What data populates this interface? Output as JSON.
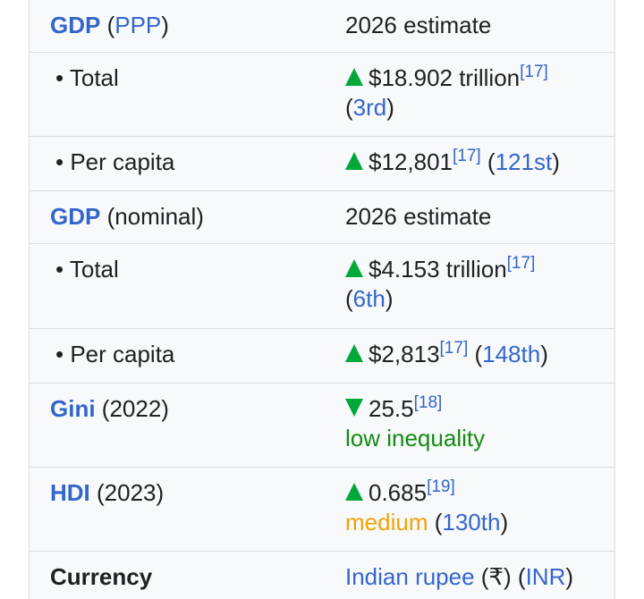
{
  "infobox": {
    "rows": [
      {
        "label": [
          "GDP",
          "(",
          "PPP",
          ")"
        ],
        "value": [
          "2026 estimate"
        ]
      },
      {
        "label": [
          "• Total"
        ],
        "value": [
          "$18.902 trillion",
          "[17]",
          "(",
          "3rd",
          ")"
        ]
      },
      {
        "label": [
          "• Per capita"
        ],
        "value": [
          "$12,801",
          "[17]",
          "(",
          "121st",
          ")"
        ]
      },
      {
        "label": [
          "GDP",
          "(nominal)"
        ],
        "value": [
          "2026 estimate"
        ]
      },
      {
        "label": [
          "• Total"
        ],
        "value": [
          "$4.153 trillion",
          "[17]",
          "(",
          "6th",
          ")"
        ]
      },
      {
        "label": [
          "• Per capita"
        ],
        "value": [
          "$2,813",
          "[17]",
          "(",
          "148th",
          ")"
        ]
      },
      {
        "label": [
          "Gini",
          "(2022)"
        ],
        "value": [
          "25.5",
          "[18]",
          "low inequality"
        ]
      },
      {
        "label": [
          "HDI",
          "(2023)"
        ],
        "value": [
          "0.685",
          "[19]",
          "medium",
          "(",
          "130th",
          ")"
        ]
      },
      {
        "label": [
          "Currency"
        ],
        "value": [
          "Indian rupee",
          "(₹)",
          "(",
          "INR",
          ")"
        ]
      }
    ]
  }
}
